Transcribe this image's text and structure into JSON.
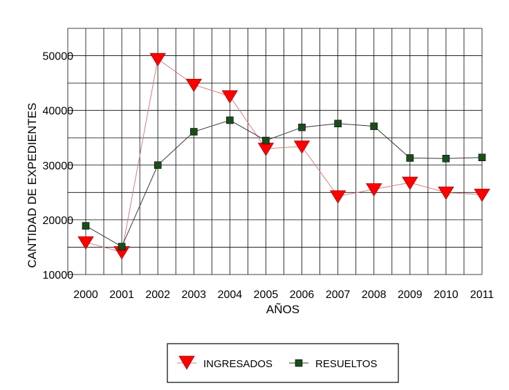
{
  "chart_data": {
    "type": "line",
    "categories": [
      "2000",
      "2001",
      "2002",
      "2003",
      "2004",
      "2005",
      "2006",
      "2007",
      "2008",
      "2009",
      "2010",
      "2011"
    ],
    "xlabel": "AÑOS",
    "ylabel": "CANTIDAD DE EXPEDIENTES",
    "ylim": [
      10000,
      55000
    ],
    "yticks": [
      10000,
      20000,
      30000,
      40000,
      50000
    ],
    "ytick_labels": [
      "10000",
      "20000",
      "30000",
      "40000",
      "50000"
    ],
    "grid": true,
    "legend_position": "bottom-center",
    "series": [
      {
        "name": "INGRESADOS",
        "marker": "triangle-down",
        "line_color": "#d97a7a",
        "marker_color": "#ff0000",
        "values": [
          15900,
          14100,
          49400,
          44700,
          42600,
          33000,
          33400,
          24300,
          25600,
          26800,
          25000,
          24600
        ]
      },
      {
        "name": "RESUELTOS",
        "marker": "square",
        "line_color": "#333333",
        "marker_color": "#1a4d1a",
        "values": [
          18900,
          15100,
          30000,
          36100,
          38200,
          34500,
          36900,
          37600,
          37100,
          31300,
          31200,
          31400
        ]
      }
    ]
  }
}
